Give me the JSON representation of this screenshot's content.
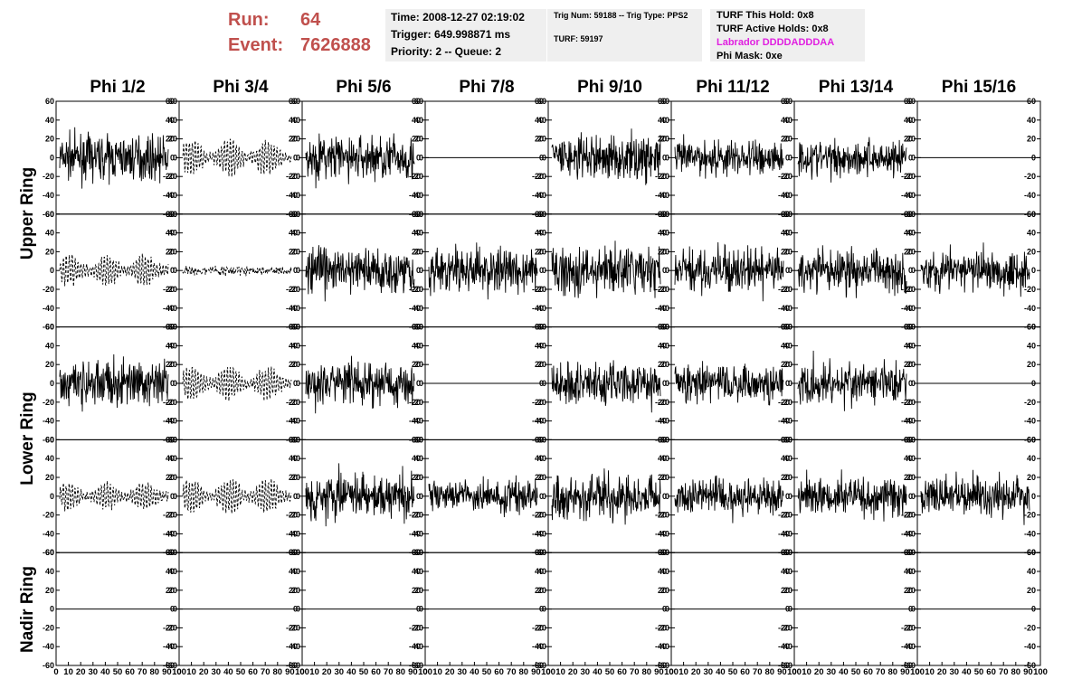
{
  "run": {
    "run_label": "Run:",
    "run_value": "64",
    "event_label": "Event:",
    "event_value": "7626888",
    "color": "#c0504d"
  },
  "info_time": {
    "time": "Time: 2008-12-27 02:19:02",
    "trigger": "Trigger: 649.998871 ms",
    "priority": "Priority: 2 -- Queue: 2"
  },
  "info_trig": {
    "trig": "Trig Num: 59188 -- Trig Type: PPS2",
    "turf": "TURF: 59197"
  },
  "info_turf": {
    "this_hold": "TURF This Hold: 0x8",
    "active_holds": "TURF Active Holds: 0x8",
    "labrador": "Labrador DDDDADDDAA",
    "labrador_color": "#e020e0",
    "phi_mask": "Phi Mask: 0xe"
  },
  "columns": [
    "Phi 1/2",
    "Phi 3/4",
    "Phi 5/6",
    "Phi 7/8",
    "Phi 9/10",
    "Phi 11/12",
    "Phi 13/14",
    "Phi 15/16"
  ],
  "rings": [
    "Upper Ring",
    "Lower Ring",
    "Nadir Ring"
  ],
  "chart_data": {
    "type": "line",
    "ylim": [
      -60,
      60
    ],
    "xlim": [
      0,
      100
    ],
    "y_ticks": [
      "60",
      "40",
      "20",
      "0",
      "-20",
      "-40",
      "-60"
    ],
    "x_ticks": [
      "0",
      "10",
      "20",
      "30",
      "40",
      "50",
      "60",
      "70",
      "80",
      "90",
      "100"
    ],
    "panel_styles": [
      [
        "solid",
        "dashed",
        "solid",
        "flat",
        "solid",
        "solid",
        "solid",
        "flat"
      ],
      [
        "dashed",
        "dashed-small",
        "solid",
        "solid",
        "solid",
        "solid",
        "solid",
        "solid"
      ],
      [
        "solid",
        "dashed",
        "solid",
        "flat",
        "solid",
        "solid",
        "solid",
        "flat"
      ],
      [
        "dashed",
        "dashed",
        "solid",
        "solid",
        "solid",
        "solid",
        "solid",
        "solid"
      ],
      [
        "flat",
        "flat",
        "flat",
        "flat",
        "flat",
        "flat",
        "flat",
        "flat"
      ]
    ],
    "amplitude_scale": [
      [
        15,
        18,
        16,
        0,
        16,
        13,
        13,
        0
      ],
      [
        16,
        2,
        17,
        16,
        17,
        15,
        15,
        15
      ],
      [
        16,
        17,
        16,
        0,
        16,
        13,
        15,
        0
      ],
      [
        14,
        17,
        16,
        11,
        14,
        13,
        14,
        15
      ],
      [
        0,
        0,
        0,
        0,
        0,
        0,
        0,
        0
      ]
    ]
  }
}
